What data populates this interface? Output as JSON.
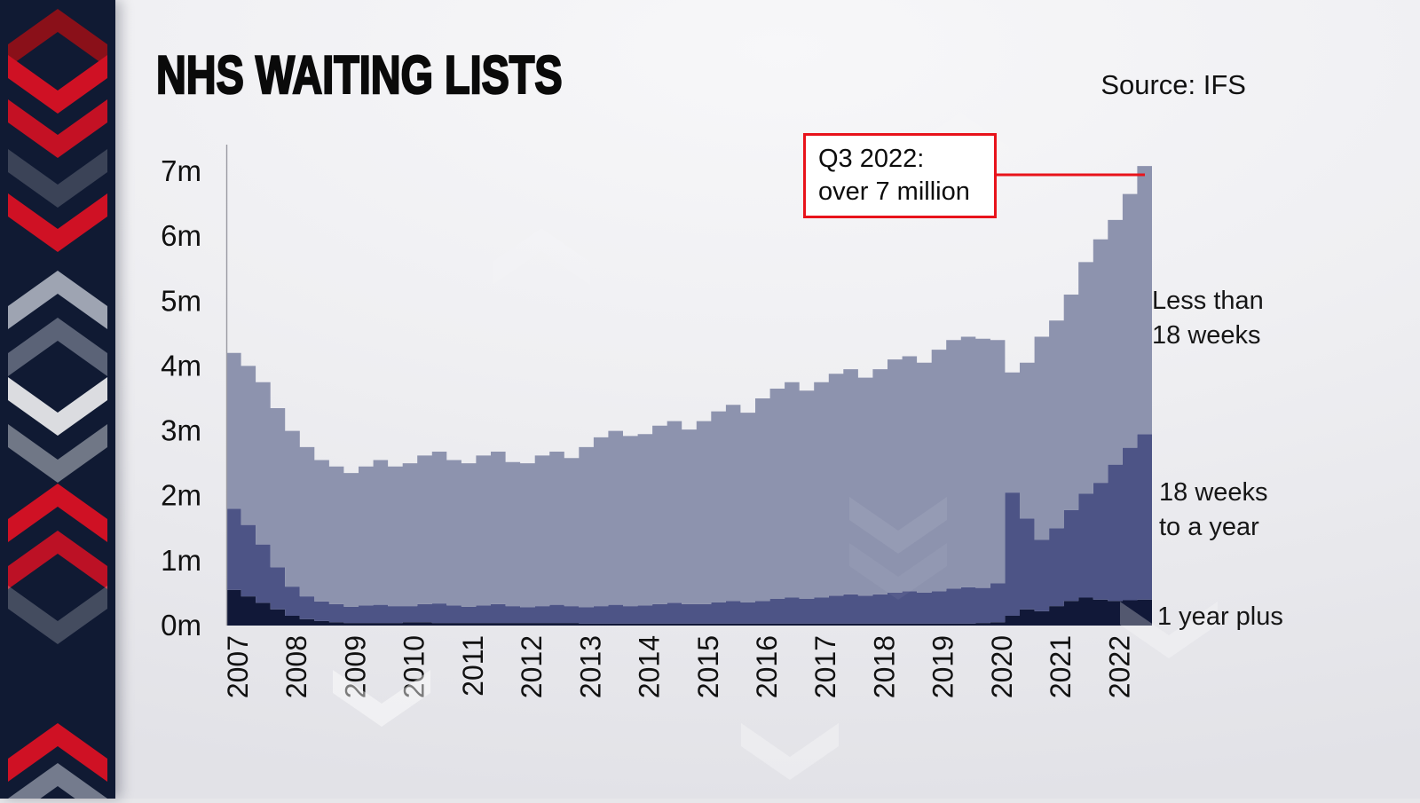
{
  "header": {
    "title": "NHS WAITING LISTS",
    "source": "Source: IFS"
  },
  "annotation": {
    "line1": "Q3 2022:",
    "line2": "over 7 million"
  },
  "colors": {
    "accent_red": "#e8131b",
    "sidebar_bg": "#101a33",
    "axis_line": "#9a9aa2",
    "text_dark": "#111111"
  },
  "chart_data": {
    "type": "area",
    "stacked": true,
    "title": "NHS WAITING LISTS",
    "source": "Source: IFS",
    "grid": false,
    "legend_position": "right",
    "x_start_year": 2007,
    "points_per_year": 4,
    "x_tick_labels": [
      "2007",
      "2008",
      "2009",
      "2010",
      "2011",
      "2012",
      "2013",
      "2014",
      "2015",
      "2016",
      "2017",
      "2018",
      "2019",
      "2020",
      "2021",
      "2022"
    ],
    "y_tick_labels": [
      "0m",
      "1m",
      "2m",
      "3m",
      "4m",
      "5m",
      "6m",
      "7m"
    ],
    "y_tick_values": [
      0,
      1,
      2,
      3,
      4,
      5,
      6,
      7
    ],
    "ylim": [
      0,
      7.4
    ],
    "unit": "millions of people",
    "annotation": {
      "text": "Q3 2022: over 7 million",
      "x": "2022 Q3",
      "y": 7.08
    },
    "series": [
      {
        "name": "1 year plus",
        "color": "#111838",
        "values": [
          0.55,
          0.45,
          0.35,
          0.25,
          0.15,
          0.1,
          0.07,
          0.05,
          0.04,
          0.04,
          0.04,
          0.04,
          0.05,
          0.05,
          0.04,
          0.04,
          0.04,
          0.04,
          0.04,
          0.04,
          0.04,
          0.04,
          0.04,
          0.04,
          0.03,
          0.03,
          0.03,
          0.03,
          0.03,
          0.03,
          0.03,
          0.03,
          0.03,
          0.03,
          0.03,
          0.03,
          0.03,
          0.03,
          0.03,
          0.03,
          0.03,
          0.03,
          0.03,
          0.03,
          0.03,
          0.03,
          0.03,
          0.03,
          0.03,
          0.03,
          0.03,
          0.04,
          0.05,
          0.15,
          0.25,
          0.22,
          0.3,
          0.38,
          0.43,
          0.4,
          0.38,
          0.39,
          0.4
        ]
      },
      {
        "name": "18 weeks to a year",
        "color": "#4d5486",
        "values": [
          1.25,
          1.1,
          0.9,
          0.65,
          0.45,
          0.35,
          0.3,
          0.28,
          0.25,
          0.27,
          0.28,
          0.26,
          0.25,
          0.28,
          0.3,
          0.27,
          0.25,
          0.27,
          0.29,
          0.26,
          0.24,
          0.26,
          0.28,
          0.26,
          0.25,
          0.27,
          0.29,
          0.27,
          0.28,
          0.3,
          0.32,
          0.3,
          0.3,
          0.33,
          0.35,
          0.33,
          0.35,
          0.38,
          0.4,
          0.38,
          0.4,
          0.43,
          0.45,
          0.43,
          0.45,
          0.48,
          0.5,
          0.48,
          0.5,
          0.54,
          0.56,
          0.54,
          0.6,
          1.9,
          1.4,
          1.1,
          1.2,
          1.4,
          1.6,
          1.8,
          2.1,
          2.35,
          2.55
        ]
      },
      {
        "name": "Less than 18 weeks",
        "color": "#8d93ae",
        "values": [
          2.4,
          2.45,
          2.5,
          2.45,
          2.4,
          2.3,
          2.18,
          2.12,
          2.06,
          2.14,
          2.23,
          2.15,
          2.2,
          2.29,
          2.34,
          2.24,
          2.21,
          2.31,
          2.35,
          2.22,
          2.22,
          2.32,
          2.36,
          2.28,
          2.47,
          2.6,
          2.68,
          2.62,
          2.64,
          2.75,
          2.8,
          2.69,
          2.82,
          2.94,
          3.02,
          2.92,
          3.12,
          3.24,
          3.32,
          3.21,
          3.32,
          3.42,
          3.47,
          3.36,
          3.47,
          3.59,
          3.62,
          3.54,
          3.72,
          3.83,
          3.86,
          3.84,
          3.75,
          1.85,
          2.4,
          3.13,
          3.2,
          3.32,
          3.57,
          3.75,
          3.77,
          3.91,
          4.13
        ]
      }
    ]
  }
}
